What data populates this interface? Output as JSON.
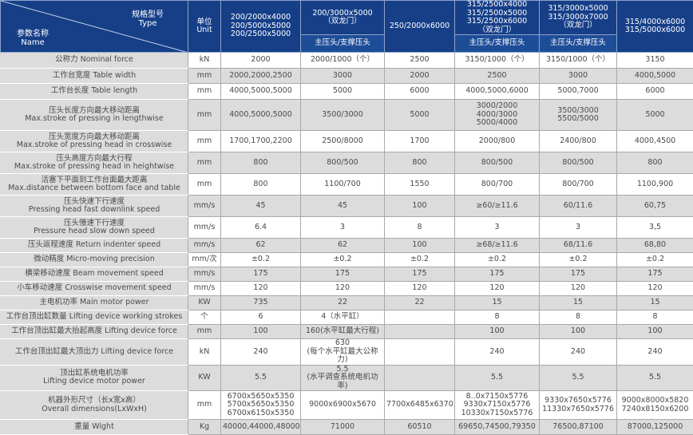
{
  "header": {
    "type_zh": "规格型号",
    "type_en": "Type",
    "name_zh": "参数名称",
    "name_en": "Name",
    "unit_zh": "单位",
    "unit_en": "Unit",
    "models": [
      {
        "label": "200/2000x4000\n200/5000x5000\n200/2500x5000",
        "sub": null
      },
      {
        "label": "200/3000x5000\n（双龙门）",
        "sub": "主压头/支撑压头"
      },
      {
        "label": "250/2000x6000",
        "sub": null
      },
      {
        "label": "315/2500x4000\n315/2500x5000\n315/2500x6000\n（双龙门）",
        "sub": "主压头/支撑压头"
      },
      {
        "label": "315/3000x5000\n315/3000x7000\n（双龙门）",
        "sub": "主压头/支撑压头"
      },
      {
        "label": "315/4000x6000\n315/5000x6000",
        "sub": null
      }
    ]
  },
  "rows": [
    {
      "name": "公称力  Nominal force",
      "unit": "kN",
      "values": [
        "2000",
        "2000/1000（个）",
        "2500",
        "3150/1000（个）",
        "3150/1000（个）",
        "3150"
      ]
    },
    {
      "name": "工作台宽度 Table width",
      "unit": "mm",
      "values": [
        "2000,2000,2500",
        "3000",
        "2000",
        "2500",
        "3000",
        "4000,5000"
      ]
    },
    {
      "name": "工作台长度 Table length",
      "unit": "mm",
      "values": [
        "4000,5000,5000",
        "5000",
        "6000",
        "4000,5000,6000",
        "5000,7000",
        "6000"
      ]
    },
    {
      "name": "压头长度方向最大移动距离\nMax.stroke of pressing in lengthwise",
      "unit": "mm",
      "values": [
        "4000,5000,5000",
        "3500/3000",
        "5000",
        "3000/2000\n4000/3000\n5000/4000",
        "3500/3000\n5500/5000",
        "5000"
      ]
    },
    {
      "name": "压头宽度方向最大移动距离\nMax.stroke of pressing head in crosswise",
      "unit": "mm",
      "values": [
        "1700,1700,2200",
        "2500/8000",
        "1700",
        "2000/800",
        "2400/800",
        "4000,4500"
      ]
    },
    {
      "name": "压头高度方向最大行程\nMax.stroke of pressing head in heightwise",
      "unit": "mm",
      "values": [
        "800",
        "800/500",
        "800",
        "800/500",
        "800/500",
        "800"
      ]
    },
    {
      "name": "活塞下平面到工作台面最大距离\nMax.distance between bottom face and table",
      "unit": "mm",
      "values": [
        "800",
        "1100/700",
        "1550",
        "800/700",
        "800/700",
        "1100,900"
      ]
    },
    {
      "name": "压头快速下行速度\nPressing head fast downlink speed",
      "unit": "mm/s",
      "values": [
        "45",
        "45",
        "100",
        "≥60/≥11.6",
        "60/11.6",
        "60,75"
      ]
    },
    {
      "name": "压头慢速下行速度\nPressure head slow down speed",
      "unit": "mm/s",
      "values": [
        "6.4",
        "3",
        "8",
        "3",
        "3",
        "3,5"
      ]
    },
    {
      "name": "压头返程速度 Return indenter speed",
      "unit": "mm/s",
      "values": [
        "62",
        "62",
        "100",
        "≥68/≥11.6",
        "68/11.6",
        "68,80"
      ]
    },
    {
      "name": "微动精度 Micro-moving precision",
      "unit": "mm/次",
      "values": [
        "±0.2",
        "±0.2",
        "±0.2",
        "±0.2",
        "±0.2",
        "±0.2"
      ]
    },
    {
      "name": "横梁移动速度 Beam movement speed",
      "unit": "mm/s",
      "values": [
        "175",
        "175",
        "175",
        "175",
        "175",
        "175"
      ]
    },
    {
      "name": "小车移动速度 Crosswise movement speed",
      "unit": "mm/s",
      "values": [
        "120",
        "120",
        "120",
        "120",
        "120",
        "120"
      ]
    },
    {
      "name": "主电机功率 Main motor power",
      "unit": "KW",
      "values": [
        "735",
        "22",
        "22",
        "15",
        "15",
        "15"
      ]
    },
    {
      "name": "工作台顶出缸数量 Lifting device working strokes",
      "unit": "个",
      "values": [
        "6",
        "4（水平缸）",
        "",
        "8",
        "8",
        "8"
      ]
    },
    {
      "name": "工作台顶出缸最大抬起高度 Lifting device force",
      "unit": "mm",
      "values": [
        "100",
        "160(水平缸最大行程)",
        "",
        "100",
        "100",
        "100"
      ]
    },
    {
      "name": "工作台顶出缸最大顶出力 Lifting device force",
      "unit": "kN",
      "values": [
        "240",
        "630\n(每个水平缸最大公称力)",
        "",
        "240",
        "240",
        "240"
      ]
    },
    {
      "name": "顶出缸系统电机功率\nLifting device motor power",
      "unit": "KW",
      "values": [
        "5.5",
        "5.5\n(水平调查系统电机功率)",
        "",
        "5.5",
        "5.5",
        "5.5"
      ]
    },
    {
      "name": "机器外形尺寸（长x宽x高）\nOverall dimensions(LxWxH)",
      "unit": "mm",
      "values": [
        "6700x5650x5350\n5700x5650x5350\n6700x6150x5350",
        "9000x6900x5670",
        "7700x6485x6370",
        "8..0x7150x5776\n9330x7150x5776\n10330x7150x5776",
        "9330x7650x5776\n11330x7650x5776",
        "9000x8000x5820\n7240x8150x6200"
      ]
    },
    {
      "name": "重量 Wight",
      "unit": "Kg",
      "values": [
        "40000,44000,48000",
        "71000",
        "60510",
        "69650,74500,79350",
        "76500,87100",
        "87000,125000"
      ]
    }
  ],
  "colors": {
    "header": "#163f88",
    "row_alt": "#dcdcdc"
  }
}
